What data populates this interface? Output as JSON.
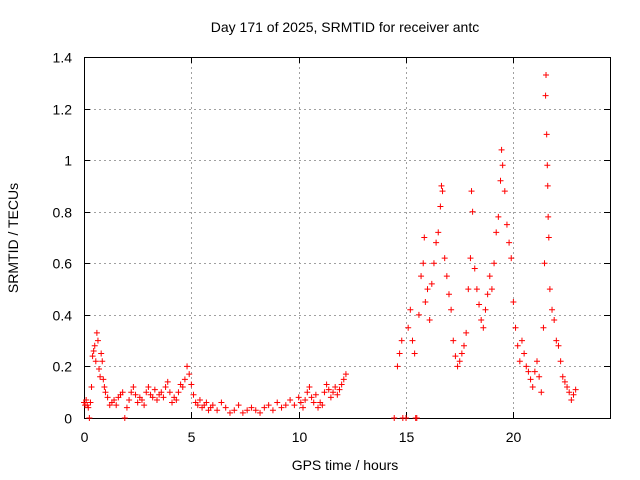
{
  "chart_data": {
    "type": "scatter",
    "title": "Day 171 of 2025, SRMTID for receiver antc",
    "xlabel": "GPS time / hours",
    "ylabel": "SRMTID / TECUs",
    "xlim": [
      0,
      24.5
    ],
    "ylim": [
      0,
      1.4
    ],
    "xticks": [
      0,
      5,
      10,
      15,
      20
    ],
    "xtick_labels": [
      "0",
      "5",
      "10",
      "15",
      "20"
    ],
    "yticks": [
      0,
      0.2,
      0.4,
      0.6,
      0.8,
      1.0,
      1.2,
      1.4
    ],
    "ytick_labels": [
      "0",
      "0.2",
      "0.4",
      "0.6",
      "0.8",
      "1",
      "1.2",
      "1.4"
    ],
    "grid": true,
    "marker": "+",
    "marker_color": "#ff0000",
    "series": [
      {
        "name": "SRMTID",
        "points": [
          [
            0.0,
            0.06
          ],
          [
            0.05,
            0.05
          ],
          [
            0.1,
            0.07
          ],
          [
            0.15,
            0.05
          ],
          [
            0.2,
            0.04
          ],
          [
            0.25,
            0.0
          ],
          [
            0.3,
            0.06
          ],
          [
            0.35,
            0.12
          ],
          [
            0.4,
            0.24
          ],
          [
            0.45,
            0.26
          ],
          [
            0.5,
            0.28
          ],
          [
            0.55,
            0.22
          ],
          [
            0.6,
            0.33
          ],
          [
            0.65,
            0.3
          ],
          [
            0.7,
            0.19
          ],
          [
            0.75,
            0.16
          ],
          [
            0.8,
            0.25
          ],
          [
            0.85,
            0.22
          ],
          [
            0.9,
            0.15
          ],
          [
            0.95,
            0.12
          ],
          [
            1.0,
            0.1
          ],
          [
            1.1,
            0.08
          ],
          [
            1.2,
            0.05
          ],
          [
            1.3,
            0.06
          ],
          [
            1.4,
            0.07
          ],
          [
            1.5,
            0.05
          ],
          [
            1.6,
            0.08
          ],
          [
            1.7,
            0.09
          ],
          [
            1.8,
            0.1
          ],
          [
            1.9,
            0.0
          ],
          [
            2.0,
            0.04
          ],
          [
            2.1,
            0.07
          ],
          [
            2.2,
            0.1
          ],
          [
            2.3,
            0.12
          ],
          [
            2.4,
            0.09
          ],
          [
            2.5,
            0.06
          ],
          [
            2.6,
            0.08
          ],
          [
            2.7,
            0.07
          ],
          [
            2.8,
            0.05
          ],
          [
            2.9,
            0.1
          ],
          [
            3.0,
            0.12
          ],
          [
            3.1,
            0.09
          ],
          [
            3.2,
            0.08
          ],
          [
            3.3,
            0.11
          ],
          [
            3.4,
            0.07
          ],
          [
            3.5,
            0.09
          ],
          [
            3.6,
            0.1
          ],
          [
            3.7,
            0.08
          ],
          [
            3.8,
            0.12
          ],
          [
            3.9,
            0.14
          ],
          [
            4.0,
            0.1
          ],
          [
            4.1,
            0.06
          ],
          [
            4.2,
            0.08
          ],
          [
            4.3,
            0.07
          ],
          [
            4.4,
            0.1
          ],
          [
            4.5,
            0.13
          ],
          [
            4.6,
            0.12
          ],
          [
            4.7,
            0.15
          ],
          [
            4.8,
            0.2
          ],
          [
            4.9,
            0.17
          ],
          [
            5.0,
            0.13
          ],
          [
            5.1,
            0.09
          ],
          [
            5.2,
            0.06
          ],
          [
            5.3,
            0.05
          ],
          [
            5.4,
            0.07
          ],
          [
            5.5,
            0.04
          ],
          [
            5.6,
            0.05
          ],
          [
            5.7,
            0.06
          ],
          [
            5.8,
            0.03
          ],
          [
            5.9,
            0.04
          ],
          [
            6.0,
            0.05
          ],
          [
            6.2,
            0.03
          ],
          [
            6.4,
            0.06
          ],
          [
            6.6,
            0.04
          ],
          [
            6.8,
            0.02
          ],
          [
            7.0,
            0.03
          ],
          [
            7.2,
            0.05
          ],
          [
            7.4,
            0.02
          ],
          [
            7.6,
            0.03
          ],
          [
            7.8,
            0.04
          ],
          [
            8.0,
            0.03
          ],
          [
            8.2,
            0.02
          ],
          [
            8.4,
            0.04
          ],
          [
            8.6,
            0.05
          ],
          [
            8.8,
            0.03
          ],
          [
            9.0,
            0.06
          ],
          [
            9.2,
            0.04
          ],
          [
            9.4,
            0.05
          ],
          [
            9.6,
            0.07
          ],
          [
            9.8,
            0.05
          ],
          [
            10.0,
            0.08
          ],
          [
            10.1,
            0.06
          ],
          [
            10.2,
            0.04
          ],
          [
            10.3,
            0.07
          ],
          [
            10.4,
            0.1
          ],
          [
            10.5,
            0.12
          ],
          [
            10.6,
            0.08
          ],
          [
            10.7,
            0.06
          ],
          [
            10.8,
            0.09
          ],
          [
            10.9,
            0.04
          ],
          [
            11.0,
            0.06
          ],
          [
            11.1,
            0.05
          ],
          [
            11.2,
            0.1
          ],
          [
            11.3,
            0.13
          ],
          [
            11.4,
            0.11
          ],
          [
            11.5,
            0.08
          ],
          [
            11.6,
            0.1
          ],
          [
            11.7,
            0.12
          ],
          [
            11.8,
            0.09
          ],
          [
            11.9,
            0.11
          ],
          [
            12.0,
            0.13
          ],
          [
            12.1,
            0.15
          ],
          [
            12.2,
            0.17
          ],
          [
            14.45,
            0.0
          ],
          [
            14.6,
            0.2
          ],
          [
            14.7,
            0.25
          ],
          [
            14.8,
            0.3
          ],
          [
            14.85,
            0.0
          ],
          [
            15.0,
            0.0
          ],
          [
            15.1,
            0.35
          ],
          [
            15.2,
            0.42
          ],
          [
            15.3,
            0.3
          ],
          [
            15.4,
            0.25
          ],
          [
            15.45,
            0.0
          ],
          [
            15.5,
            0.0
          ],
          [
            15.6,
            0.4
          ],
          [
            15.7,
            0.55
          ],
          [
            15.8,
            0.6
          ],
          [
            15.85,
            0.7
          ],
          [
            15.9,
            0.45
          ],
          [
            16.0,
            0.5
          ],
          [
            16.1,
            0.38
          ],
          [
            16.2,
            0.52
          ],
          [
            16.3,
            0.6
          ],
          [
            16.4,
            0.68
          ],
          [
            16.5,
            0.72
          ],
          [
            16.6,
            0.82
          ],
          [
            16.65,
            0.9
          ],
          [
            16.7,
            0.88
          ],
          [
            16.8,
            0.62
          ],
          [
            16.9,
            0.55
          ],
          [
            17.0,
            0.48
          ],
          [
            17.1,
            0.42
          ],
          [
            17.2,
            0.3
          ],
          [
            17.3,
            0.24
          ],
          [
            17.4,
            0.2
          ],
          [
            17.5,
            0.22
          ],
          [
            17.6,
            0.25
          ],
          [
            17.7,
            0.28
          ],
          [
            17.8,
            0.33
          ],
          [
            17.9,
            0.5
          ],
          [
            18.0,
            0.62
          ],
          [
            18.05,
            0.88
          ],
          [
            18.1,
            0.8
          ],
          [
            18.2,
            0.58
          ],
          [
            18.3,
            0.5
          ],
          [
            18.4,
            0.44
          ],
          [
            18.5,
            0.38
          ],
          [
            18.6,
            0.35
          ],
          [
            18.7,
            0.42
          ],
          [
            18.8,
            0.48
          ],
          [
            18.9,
            0.55
          ],
          [
            19.0,
            0.5
          ],
          [
            19.1,
            0.6
          ],
          [
            19.2,
            0.72
          ],
          [
            19.3,
            0.78
          ],
          [
            19.4,
            0.92
          ],
          [
            19.45,
            1.04
          ],
          [
            19.5,
            0.98
          ],
          [
            19.6,
            0.88
          ],
          [
            19.7,
            0.75
          ],
          [
            19.8,
            0.68
          ],
          [
            19.9,
            0.62
          ],
          [
            20.0,
            0.45
          ],
          [
            20.1,
            0.35
          ],
          [
            20.2,
            0.28
          ],
          [
            20.3,
            0.22
          ],
          [
            20.4,
            0.3
          ],
          [
            20.5,
            0.25
          ],
          [
            20.6,
            0.2
          ],
          [
            20.7,
            0.18
          ],
          [
            20.8,
            0.15
          ],
          [
            20.9,
            0.12
          ],
          [
            21.0,
            0.18
          ],
          [
            21.1,
            0.22
          ],
          [
            21.2,
            0.16
          ],
          [
            21.3,
            0.1
          ],
          [
            21.4,
            0.35
          ],
          [
            21.45,
            0.6
          ],
          [
            21.5,
            1.25
          ],
          [
            21.52,
            1.33
          ],
          [
            21.55,
            1.1
          ],
          [
            21.58,
            0.98
          ],
          [
            21.6,
            0.9
          ],
          [
            21.62,
            0.78
          ],
          [
            21.65,
            0.7
          ],
          [
            21.7,
            0.5
          ],
          [
            21.8,
            0.42
          ],
          [
            21.9,
            0.38
          ],
          [
            22.0,
            0.3
          ],
          [
            22.1,
            0.28
          ],
          [
            22.2,
            0.22
          ],
          [
            22.3,
            0.16
          ],
          [
            22.4,
            0.14
          ],
          [
            22.5,
            0.12
          ],
          [
            22.6,
            0.1
          ],
          [
            22.7,
            0.07
          ],
          [
            22.8,
            0.09
          ],
          [
            22.9,
            0.11
          ]
        ]
      }
    ]
  }
}
